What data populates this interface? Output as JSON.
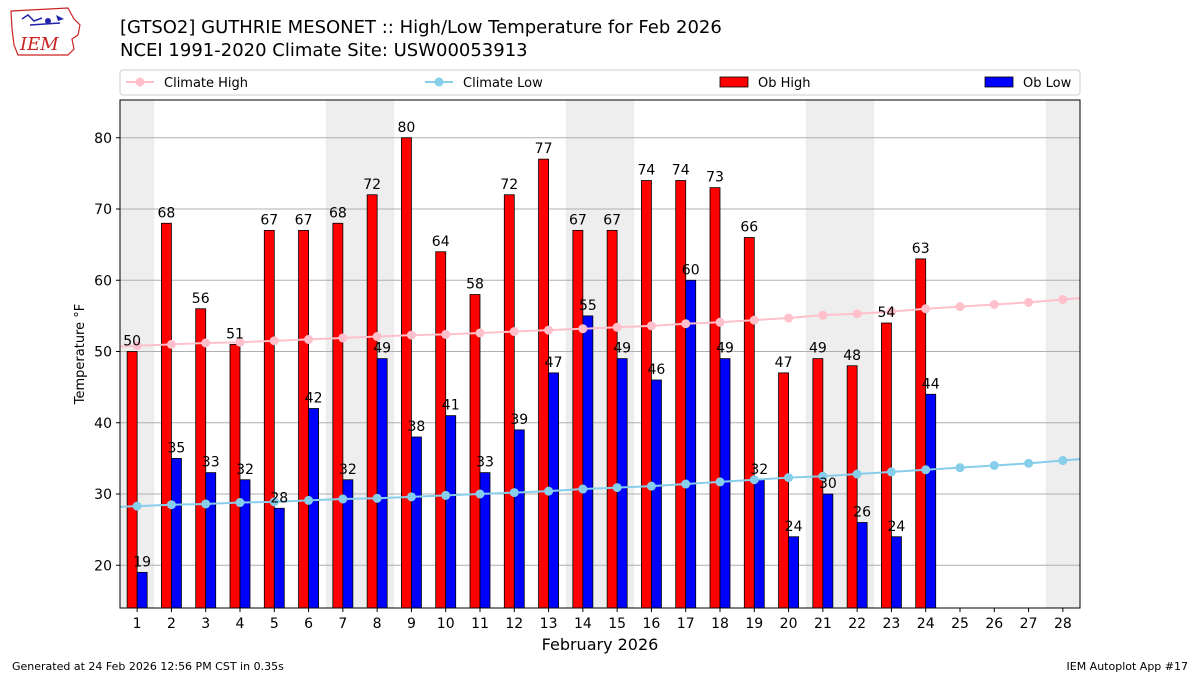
{
  "header": {
    "title_line1": "[GTSO2] GUTHRIE MESONET :: High/Low Temperature for Feb 2026",
    "title_line2": "NCEI 1991-2020 Climate Site: USW00053913"
  },
  "footer": {
    "left": "Generated at 24 Feb 2026 12:56 PM CST in 0.35s",
    "right": "IEM Autoplot App #17"
  },
  "logo": {
    "text": "IEM",
    "icon": "iowa-state-map-logo-icon"
  },
  "colors": {
    "ob_high": "#ff0000",
    "ob_low": "#0000ff",
    "climate_high": "#ffc0cb",
    "climate_low": "#87ceeb",
    "weekend_shade": "#eeeeee",
    "grid": "#b0b0b0"
  },
  "chart_data": {
    "type": "bar",
    "title": "[GTSO2] GUTHRIE MESONET :: High/Low Temperature for Feb 2026",
    "xlabel": "February 2026",
    "ylabel": "Temperature °F",
    "ylim": [
      14,
      85.3
    ],
    "yticks": [
      20,
      30,
      40,
      50,
      60,
      70,
      80
    ],
    "grid": true,
    "legend_position": "top",
    "categories": [
      "1",
      "2",
      "3",
      "4",
      "5",
      "6",
      "7",
      "8",
      "9",
      "10",
      "11",
      "12",
      "13",
      "14",
      "15",
      "16",
      "17",
      "18",
      "19",
      "20",
      "21",
      "22",
      "23",
      "24",
      "25",
      "26",
      "27",
      "28"
    ],
    "weekend_days": [
      1,
      7,
      8,
      14,
      15,
      21,
      22,
      28
    ],
    "legend": [
      "Climate High",
      "Climate Low",
      "Ob High",
      "Ob Low"
    ],
    "series": [
      {
        "name": "Ob High",
        "kind": "bar",
        "values": [
          50,
          68,
          56,
          51,
          67,
          67,
          68,
          72,
          80,
          64,
          58,
          72,
          77,
          67,
          67,
          74,
          74,
          73,
          66,
          47,
          49,
          48,
          54,
          63,
          null,
          null,
          null,
          null
        ]
      },
      {
        "name": "Ob Low",
        "kind": "bar",
        "values": [
          19,
          35,
          33,
          32,
          28,
          42,
          32,
          49,
          38,
          41,
          33,
          39,
          47,
          55,
          49,
          46,
          60,
          49,
          32,
          24,
          30,
          26,
          24,
          44,
          null,
          null,
          null,
          null
        ]
      },
      {
        "name": "Climate High",
        "kind": "line",
        "values": [
          50.8,
          51.0,
          51.2,
          51.3,
          51.5,
          51.7,
          51.9,
          52.1,
          52.3,
          52.4,
          52.6,
          52.8,
          53.0,
          53.2,
          53.4,
          53.6,
          53.9,
          54.1,
          54.4,
          54.7,
          55.1,
          55.3,
          55.6,
          56.0,
          56.3,
          56.6,
          56.9,
          57.3
        ]
      },
      {
        "name": "Climate Low",
        "kind": "line",
        "values": [
          28.3,
          28.5,
          28.6,
          28.8,
          28.9,
          29.1,
          29.3,
          29.4,
          29.6,
          29.8,
          30.0,
          30.2,
          30.4,
          30.7,
          30.9,
          31.1,
          31.4,
          31.7,
          32.0,
          32.3,
          32.5,
          32.8,
          33.1,
          33.4,
          33.7,
          34.0,
          34.3,
          34.7
        ]
      }
    ]
  }
}
